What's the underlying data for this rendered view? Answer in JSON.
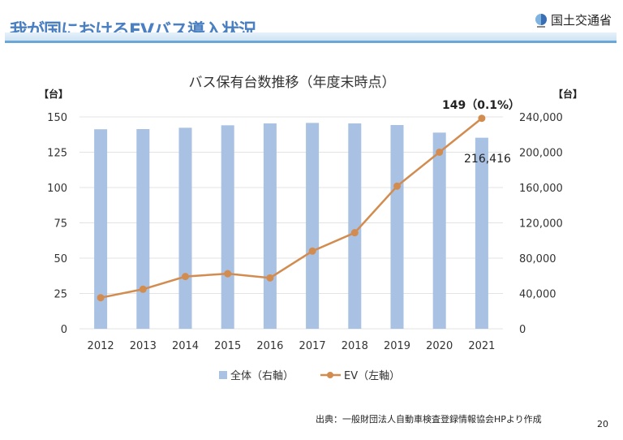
{
  "header": {
    "title": "我が国におけるEVバス導入状況",
    "org": "国土交通省",
    "logo_icon": "mlit-logo-icon"
  },
  "chart_data": {
    "type": "bar+line",
    "title": "バス保有台数推移（年度末時点）",
    "categories": [
      "2012",
      "2013",
      "2014",
      "2015",
      "2016",
      "2017",
      "2018",
      "2019",
      "2020",
      "2021"
    ],
    "left_axis": {
      "unit": "【台】",
      "ylim": [
        0,
        150
      ],
      "ticks": [
        "0",
        "25",
        "50",
        "75",
        "100",
        "125",
        "150"
      ]
    },
    "right_axis": {
      "unit": "【台】",
      "ylim": [
        0,
        240000
      ],
      "ticks": [
        "0",
        "40,000",
        "80,000",
        "120,000",
        "160,000",
        "200,000",
        "240,000"
      ]
    },
    "series": [
      {
        "name": "全体（右軸）",
        "type": "bar",
        "axis": "right",
        "color": "#a9c1e3",
        "values": [
          226000,
          226200,
          227700,
          230500,
          232600,
          233200,
          232600,
          230800,
          222200,
          216416
        ]
      },
      {
        "name": "EV（左軸）",
        "type": "line",
        "axis": "left",
        "color": "#d38c4f",
        "values": [
          22,
          28,
          37,
          39,
          36,
          55,
          68,
          101,
          125,
          149
        ]
      }
    ],
    "annotations": {
      "ev_last": "149（0.1%）",
      "bar_last": "216,416"
    },
    "grid": true,
    "legend": "bottom"
  },
  "footer": {
    "source": "出典：一般財団法人自動車検査登録情報協会HPより作成",
    "page": "20"
  }
}
